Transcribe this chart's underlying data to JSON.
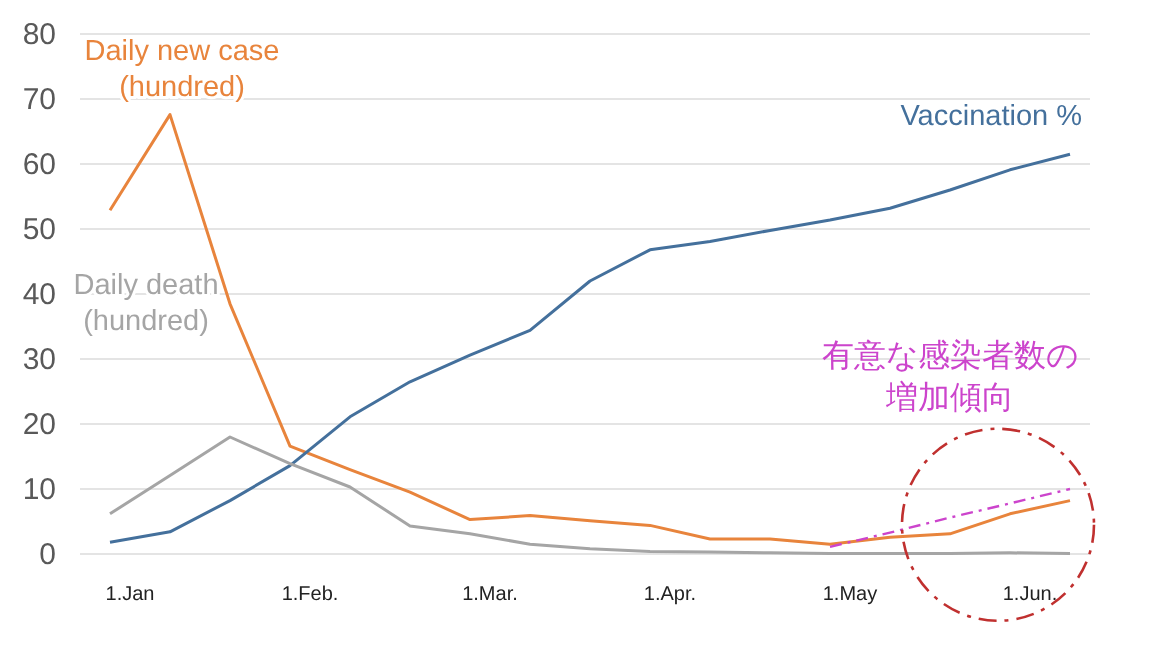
{
  "chart_data": {
    "type": "line",
    "categories": [
      "1.Jan",
      null,
      null,
      "1.Feb.",
      null,
      null,
      "1.Mar.",
      null,
      null,
      "1.Apr.",
      null,
      null,
      "1.May",
      null,
      null,
      "1.Jun.",
      null
    ],
    "series": [
      {
        "name": "Daily new case\n(hundred)",
        "color": "#e8843c",
        "values": [
          52.9,
          67.6,
          38.5,
          16.6,
          13,
          9.5,
          5.3,
          5.9,
          5.1,
          4.4,
          2.3,
          2.3,
          1.5,
          2.6,
          3.1,
          6.2,
          8.2
        ]
      },
      {
        "name": "Vaccination %",
        "color": "#44709c",
        "values": [
          1.8,
          3.4,
          8.2,
          13.6,
          21.1,
          26.5,
          30.6,
          34.4,
          42,
          46.8,
          48.1,
          49.8,
          51.4,
          53.2,
          56,
          59.1,
          61.5
        ]
      },
      {
        "name": "Daily death\n(hundred)",
        "color": "#a5a5a5",
        "values": [
          6.2,
          12.1,
          18,
          13.9,
          10.3,
          4.3,
          3.1,
          1.5,
          0.8,
          0.4,
          0.3,
          0.2,
          0.1,
          0.1,
          0.1,
          0.2,
          0.1
        ]
      },
      {
        "type": "line",
        "color": "#cc44cc",
        "line_style": "dashed",
        "values": [
          null,
          null,
          null,
          null,
          null,
          null,
          null,
          null,
          null,
          null,
          null,
          null,
          1.1,
          3.3,
          5.6,
          7.8,
          10
        ]
      }
    ],
    "ylim": [
      0,
      80
    ],
    "yticks": [
      0,
      10,
      20,
      30,
      40,
      50,
      60,
      70,
      80
    ],
    "grid": "y",
    "legend": false,
    "annotations": [
      "有意な感染者数の増加傾向"
    ]
  }
}
